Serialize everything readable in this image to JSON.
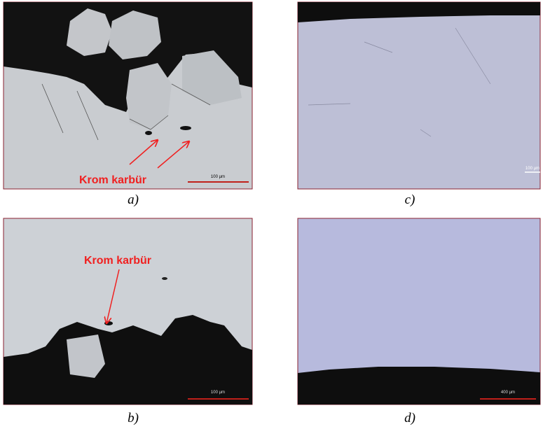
{
  "figure": {
    "panels": [
      {
        "caption": "a)",
        "annotation": "Krom karbür",
        "scale_label": "100 µm"
      },
      {
        "caption": "b)",
        "annotation": "Krom karbür",
        "scale_label": "100 µm"
      },
      {
        "caption": "c)",
        "scale_label": "100 µm"
      },
      {
        "caption": "d)",
        "scale_label": "400 µm"
      }
    ]
  }
}
